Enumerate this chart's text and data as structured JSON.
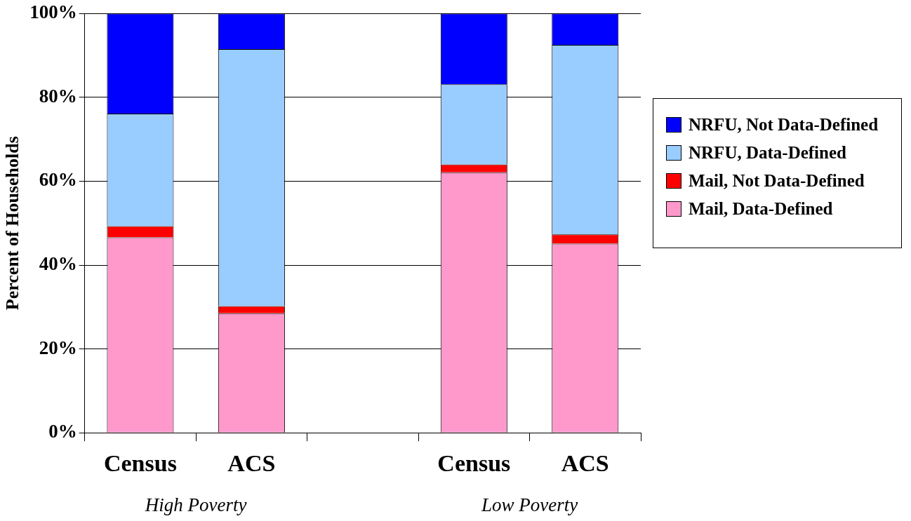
{
  "chart_data": {
    "type": "bar",
    "stacked": true,
    "ylabel": "Percent of Households",
    "categories": [
      "Census",
      "ACS",
      null,
      "Census",
      "ACS"
    ],
    "series": [
      {
        "name": "Mail, Data-Defined",
        "color": "#ff99cc",
        "values": [
          46.6,
          28.5,
          null,
          62.1,
          45.1
        ]
      },
      {
        "name": "Mail, Not Data-Defined",
        "color": "#ff0000",
        "values": [
          2.7,
          1.7,
          null,
          1.9,
          2.2
        ]
      },
      {
        "name": "NRFU, Data-Defined",
        "color": "#99ccff",
        "values": [
          26.8,
          61.3,
          null,
          19.1,
          45.2
        ]
      },
      {
        "name": "NRFU, Not Data-Defined",
        "color": "#0000ff",
        "values": [
          23.9,
          8.5,
          null,
          16.9,
          7.5
        ]
      }
    ],
    "ylim": [
      0,
      100
    ],
    "yticks": [
      {
        "value": 0,
        "label": "0%"
      },
      {
        "value": 20,
        "label": "20%"
      },
      {
        "value": 40,
        "label": "40%"
      },
      {
        "value": 60,
        "label": "60%"
      },
      {
        "value": 80,
        "label": "80%"
      },
      {
        "value": 100,
        "label": "100%"
      }
    ],
    "grid": "y",
    "legend": "right",
    "annotations": [
      "High Poverty",
      "Low Poverty"
    ]
  }
}
